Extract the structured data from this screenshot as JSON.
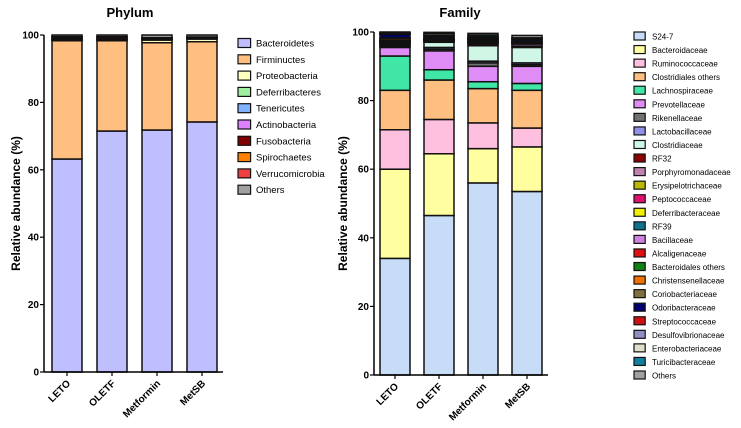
{
  "chart_data": [
    {
      "type": "bar",
      "stacked": true,
      "title": "Phylum",
      "xlabel": "",
      "ylabel": "Relative abundance (%)",
      "ylim": [
        0,
        100
      ],
      "yticks": [
        0,
        20,
        40,
        60,
        80,
        100
      ],
      "legend_position": "right",
      "categories": [
        "LETO",
        "OLETF",
        "Metformin",
        "MetSB"
      ],
      "series": [
        {
          "name": "Bacteroidetes",
          "color": "#bfbfff",
          "values": [
            63.2,
            71.5,
            71.8,
            74.2
          ]
        },
        {
          "name": "Firminuctes",
          "color": "#ffbf80",
          "values": [
            35.1,
            26.8,
            25.9,
            23.8
          ]
        },
        {
          "name": "Proteobacteria",
          "color": "#ffffbf",
          "values": [
            0.2,
            0.2,
            0.8,
            0.8
          ]
        },
        {
          "name": "Deferribacteres",
          "color": "#9fef9f",
          "values": [
            0.1,
            0.1,
            0.1,
            0.1
          ]
        },
        {
          "name": "Tenericutes",
          "color": "#80b3ff",
          "values": [
            0.1,
            0.1,
            0.2,
            0.1
          ]
        },
        {
          "name": "Actinobacteria",
          "color": "#df80ff",
          "values": [
            0.1,
            0.1,
            0.1,
            0.1
          ]
        },
        {
          "name": "Fusobacteria",
          "color": "#7f0000",
          "values": [
            0.3,
            0.5,
            0.1,
            0.1
          ]
        },
        {
          "name": "Spirochaetes",
          "color": "#ff8000",
          "values": [
            0.3,
            0.1,
            0.1,
            0.1
          ]
        },
        {
          "name": "Verrucomicrobia",
          "color": "#ef4040",
          "values": [
            0.1,
            0.1,
            0.1,
            0.1
          ]
        },
        {
          "name": "Others",
          "color": "#a0a0a0",
          "values": [
            0.5,
            0.5,
            0.8,
            0.6
          ]
        }
      ]
    },
    {
      "type": "bar",
      "stacked": true,
      "title": "Family",
      "xlabel": "",
      "ylabel": "Relative abundance (%)",
      "ylim": [
        0,
        100
      ],
      "yticks": [
        0,
        20,
        40,
        60,
        80,
        100
      ],
      "legend_position": "right",
      "categories": [
        "LETO",
        "OLETF",
        "Metformin",
        "MetSB"
      ],
      "series": [
        {
          "name": "S24-7",
          "color": "#c6dcf7",
          "values": [
            34.0,
            46.5,
            56.0,
            53.5
          ]
        },
        {
          "name": "Bacteroidaceae",
          "color": "#ffffa0",
          "values": [
            26.0,
            18.0,
            10.0,
            13.0
          ]
        },
        {
          "name": "Ruminococcaceae",
          "color": "#ffbfdf",
          "values": [
            11.5,
            10.0,
            7.5,
            5.5
          ]
        },
        {
          "name": "Clostridiales others",
          "color": "#ffbf80",
          "values": [
            11.5,
            11.5,
            10.0,
            11.0
          ]
        },
        {
          "name": "Lachnospiraceae",
          "color": "#40e6a6",
          "values": [
            10.0,
            3.0,
            2.0,
            2.0
          ]
        },
        {
          "name": "Prevotellaceae",
          "color": "#df8cf7",
          "values": [
            2.5,
            5.5,
            4.5,
            5.0
          ]
        },
        {
          "name": "Rikenellaceae",
          "color": "#707070",
          "values": [
            0.4,
            0.5,
            1.0,
            0.5
          ]
        },
        {
          "name": "Lactobacillaceae",
          "color": "#9090e8",
          "values": [
            0.3,
            0.5,
            0.5,
            0.5
          ]
        },
        {
          "name": "Clostridiaceae",
          "color": "#d0f7e6",
          "values": [
            0.2,
            1.5,
            4.5,
            4.5
          ]
        },
        {
          "name": "RF32",
          "color": "#8b0000",
          "values": [
            0.2,
            0.2,
            0.5,
            0.4
          ]
        },
        {
          "name": "Porphyromonadaceae",
          "color": "#c080b0",
          "values": [
            0.3,
            0.2,
            0.2,
            0.6
          ]
        },
        {
          "name": "Erysipelotrichaceae",
          "color": "#b8b800",
          "values": [
            0.1,
            0.1,
            0.1,
            0.1
          ]
        },
        {
          "name": "Peptococcaceae",
          "color": "#e0106f",
          "values": [
            0.2,
            0.1,
            0.1,
            0.1
          ]
        },
        {
          "name": "Deferribacteraceae",
          "color": "#f0f000",
          "values": [
            0.1,
            0.1,
            0.1,
            0.1
          ]
        },
        {
          "name": "RF39",
          "color": "#107090",
          "values": [
            0.1,
            0.1,
            0.2,
            0.1
          ]
        },
        {
          "name": "Bacillaceae",
          "color": "#d080e0",
          "values": [
            0.1,
            0.1,
            0.1,
            0.1
          ]
        },
        {
          "name": "Alcaligenaceae",
          "color": "#e01010",
          "values": [
            0.1,
            0.1,
            0.3,
            0.1
          ]
        },
        {
          "name": "Bacteroidales others",
          "color": "#108010",
          "values": [
            0.1,
            0.1,
            0.1,
            0.1
          ]
        },
        {
          "name": "Christensenellaceae",
          "color": "#f07000",
          "values": [
            0.5,
            0.1,
            0.1,
            0.1
          ]
        },
        {
          "name": "Coriobacteriaceae",
          "color": "#807040",
          "values": [
            0.1,
            0.1,
            0.1,
            0.1
          ]
        },
        {
          "name": "Odoribacteraceae",
          "color": "#000070",
          "values": [
            1.0,
            0.5,
            0.3,
            0.5
          ]
        },
        {
          "name": "Streptococcaceae",
          "color": "#d01010",
          "values": [
            0.1,
            0.1,
            0.1,
            0.1
          ]
        },
        {
          "name": "Desulfovibrionaceae",
          "color": "#9090c0",
          "values": [
            0.1,
            0.1,
            0.2,
            0.1
          ]
        },
        {
          "name": "Enterobacteriaceae",
          "color": "#e0e0c8",
          "values": [
            0.1,
            0.5,
            0.1,
            0.1
          ]
        },
        {
          "name": "Turicibacteraceae",
          "color": "#1080a0",
          "values": [
            0.1,
            0.1,
            0.5,
            0.1
          ]
        },
        {
          "name": "Others",
          "color": "#a0a0a0",
          "values": [
            0.3,
            0.3,
            0.5,
            0.7
          ]
        }
      ]
    }
  ]
}
